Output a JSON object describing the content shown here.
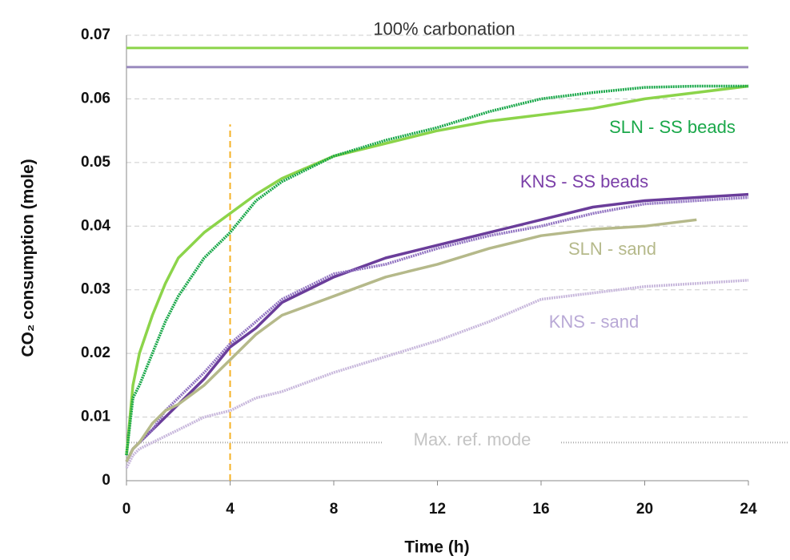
{
  "chart_data": {
    "type": "line",
    "x_label": "Time (h)",
    "y_label": "CO₂ consumption (mole)",
    "x": [
      0,
      0.25,
      0.5,
      1,
      1.5,
      2,
      3,
      4,
      5,
      6,
      8,
      10,
      12,
      14,
      16,
      18,
      20,
      22,
      24
    ],
    "series": [
      {
        "color": "#8cd44a",
        "values": [
          0.004,
          0.015,
          0.02,
          0.026,
          0.031,
          0.035,
          0.039,
          0.042,
          0.045,
          0.0475,
          0.051,
          0.053,
          0.055,
          0.0565,
          0.0575,
          0.0585,
          0.06,
          0.061,
          0.062
        ]
      },
      {
        "name": "SLN - SS beads",
        "color": "#1aa84a",
        "values": [
          0.004,
          0.013,
          0.015,
          0.02,
          0.025,
          0.029,
          0.035,
          0.039,
          0.044,
          0.047,
          0.051,
          0.0535,
          0.0555,
          0.058,
          0.06,
          0.061,
          0.0618,
          0.062,
          0.062
        ]
      },
      {
        "name": "KNS - SS beads",
        "color": "#6a3d9a",
        "values": [
          0.003,
          0.005,
          0.006,
          0.008,
          0.01,
          0.012,
          0.016,
          0.021,
          0.024,
          0.028,
          0.032,
          0.035,
          0.037,
          0.039,
          0.041,
          0.043,
          0.044,
          0.0445,
          0.045
        ]
      },
      {
        "color": "#9274c2",
        "values": [
          0.003,
          0.005,
          0.006,
          0.008,
          0.011,
          0.013,
          0.017,
          0.0215,
          0.025,
          0.0285,
          0.0325,
          0.034,
          0.0365,
          0.0385,
          0.04,
          0.042,
          0.0435,
          0.044,
          0.0445
        ]
      },
      {
        "name": "SLN - sand",
        "color": "#b5b98a",
        "values": [
          0.003,
          0.005,
          0.006,
          0.009,
          0.011,
          0.012,
          0.015,
          0.019,
          0.023,
          0.026,
          0.029,
          0.032,
          0.034,
          0.0365,
          0.0385,
          0.0395,
          0.04,
          0.041,
          null
        ]
      },
      {
        "name": "KNS - sand",
        "color": "#c8b8dc",
        "values": [
          0.002,
          0.004,
          0.005,
          0.006,
          0.007,
          0.008,
          0.01,
          0.011,
          0.013,
          0.014,
          0.017,
          0.0195,
          0.022,
          0.025,
          0.0285,
          0.0295,
          0.0305,
          0.031,
          0.0315
        ]
      }
    ],
    "reference_lines": [
      {
        "value": 0.068,
        "color": "#8cd44a",
        "label": "100% carbonation"
      },
      {
        "value": 0.065,
        "color": "#9b8bbf"
      }
    ],
    "max_ref": {
      "value": 0.006,
      "label": "Max. ref. mode"
    },
    "marker": {
      "x": 4,
      "top": 0.056,
      "color": "#f5b225"
    },
    "xlim": [
      0,
      24
    ],
    "xticks": [
      0,
      4,
      8,
      12,
      16,
      20,
      24
    ],
    "ylim": [
      0,
      0.07
    ],
    "yticks": [
      0,
      0.01,
      0.02,
      0.03,
      0.04,
      0.05,
      0.06,
      0.07
    ],
    "grid": true
  }
}
